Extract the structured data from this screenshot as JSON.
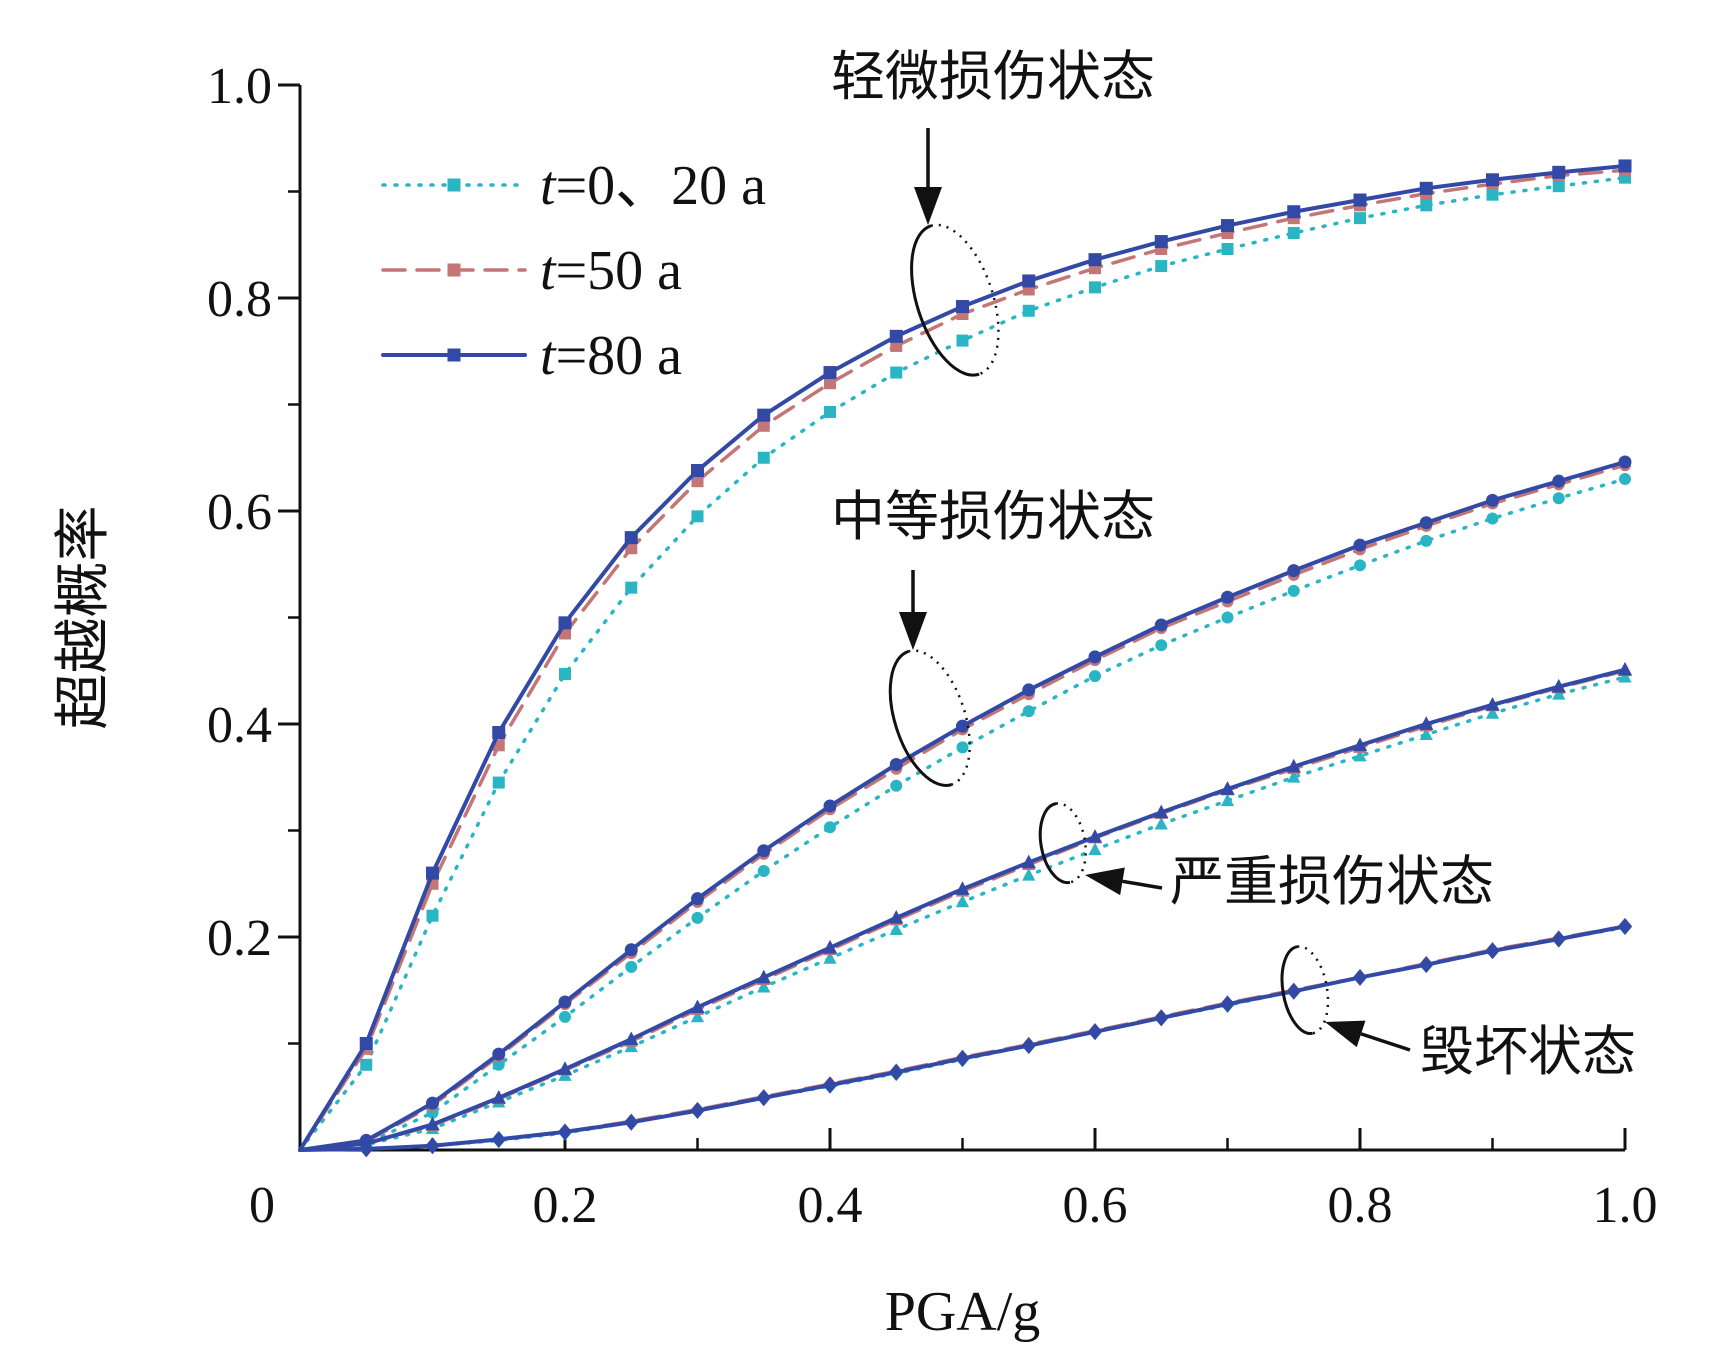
{
  "chart_data": {
    "type": "line",
    "xlabel": "PGA/g",
    "ylabel": "超越概率",
    "xlim": [
      0,
      1.0
    ],
    "ylim": [
      0,
      1.0
    ],
    "x_ticks": [
      {
        "value": 0,
        "label": "0"
      },
      {
        "value": 0.2,
        "label": "0.2"
      },
      {
        "value": 0.4,
        "label": "0.4"
      },
      {
        "value": 0.6,
        "label": "0.6"
      },
      {
        "value": 0.8,
        "label": "0.8"
      },
      {
        "value": 1.0,
        "label": "1.0"
      }
    ],
    "y_ticks": [
      {
        "value": 0.2,
        "label": "0.2"
      },
      {
        "value": 0.4,
        "label": "0.4"
      },
      {
        "value": 0.6,
        "label": "0.6"
      },
      {
        "value": 0.8,
        "label": "0.8"
      },
      {
        "value": 1.0,
        "label": "1.0"
      }
    ],
    "x_minor_step": 0.1,
    "y_minor_step": 0.1,
    "grid": false,
    "legend_position": "top-left",
    "legend": [
      {
        "series": "t0",
        "label_italic": "t",
        "label_rest": "=0、20 a",
        "color": "#29b5c4",
        "dash": "dotted",
        "marker": "square"
      },
      {
        "series": "t50",
        "label_italic": "t",
        "label_rest": "=50 a",
        "color": "#c47575",
        "dash": "dashed",
        "marker": "square"
      },
      {
        "series": "t80",
        "label_italic": "t",
        "label_rest": "=80 a",
        "color": "#3349a6",
        "dash": "solid",
        "marker": "square"
      }
    ],
    "series_styles": {
      "t0": {
        "color": "#29b5c4",
        "dash": "dotted"
      },
      "t50": {
        "color": "#c47575",
        "dash": "dashed"
      },
      "t80": {
        "color": "#3349a6",
        "dash": "solid"
      }
    },
    "x": [
      0,
      0.05,
      0.1,
      0.15,
      0.2,
      0.25,
      0.3,
      0.35,
      0.4,
      0.45,
      0.5,
      0.55,
      0.6,
      0.65,
      0.7,
      0.75,
      0.8,
      0.85,
      0.9,
      0.95,
      1.0
    ],
    "groups": [
      {
        "name": "轻微损伤状态",
        "marker": "square",
        "series": {
          "t0": [
            0,
            0.08,
            0.22,
            0.345,
            0.447,
            0.528,
            0.595,
            0.65,
            0.693,
            0.73,
            0.76,
            0.788,
            0.81,
            0.83,
            0.846,
            0.861,
            0.875,
            0.887,
            0.897,
            0.905,
            0.913
          ],
          "t50": [
            0,
            0.095,
            0.25,
            0.38,
            0.485,
            0.565,
            0.628,
            0.68,
            0.72,
            0.755,
            0.785,
            0.808,
            0.828,
            0.846,
            0.861,
            0.875,
            0.887,
            0.898,
            0.907,
            0.915,
            0.92
          ],
          "t80": [
            0,
            0.1,
            0.26,
            0.392,
            0.495,
            0.575,
            0.638,
            0.69,
            0.73,
            0.764,
            0.792,
            0.816,
            0.836,
            0.853,
            0.868,
            0.881,
            0.892,
            0.903,
            0.911,
            0.918,
            0.924
          ]
        }
      },
      {
        "name": "中等损伤状态",
        "marker": "circle",
        "series": {
          "t0": [
            0,
            0.006,
            0.035,
            0.08,
            0.125,
            0.172,
            0.218,
            0.262,
            0.303,
            0.342,
            0.378,
            0.412,
            0.445,
            0.474,
            0.5,
            0.525,
            0.549,
            0.572,
            0.593,
            0.612,
            0.63
          ],
          "t50": [
            0,
            0.008,
            0.042,
            0.088,
            0.137,
            0.185,
            0.233,
            0.278,
            0.32,
            0.358,
            0.395,
            0.428,
            0.46,
            0.49,
            0.515,
            0.54,
            0.564,
            0.586,
            0.607,
            0.625,
            0.643
          ],
          "t80": [
            0,
            0.009,
            0.044,
            0.09,
            0.139,
            0.188,
            0.236,
            0.281,
            0.323,
            0.362,
            0.398,
            0.432,
            0.463,
            0.493,
            0.519,
            0.544,
            0.568,
            0.589,
            0.61,
            0.628,
            0.646
          ]
        }
      },
      {
        "name": "严重损伤状态",
        "marker": "triangle",
        "series": {
          "t0": [
            0,
            0.005,
            0.02,
            0.045,
            0.07,
            0.097,
            0.125,
            0.153,
            0.18,
            0.207,
            0.233,
            0.258,
            0.282,
            0.306,
            0.328,
            0.35,
            0.37,
            0.39,
            0.41,
            0.428,
            0.444
          ],
          "t50": [
            0,
            0.006,
            0.023,
            0.048,
            0.075,
            0.102,
            0.132,
            0.16,
            0.188,
            0.216,
            0.243,
            0.268,
            0.293,
            0.316,
            0.338,
            0.358,
            0.378,
            0.398,
            0.417,
            0.434,
            0.45
          ],
          "t80": [
            0,
            0.006,
            0.024,
            0.049,
            0.076,
            0.104,
            0.134,
            0.162,
            0.19,
            0.218,
            0.245,
            0.27,
            0.294,
            0.317,
            0.339,
            0.36,
            0.38,
            0.4,
            0.418,
            0.435,
            0.451
          ]
        }
      },
      {
        "name": "毁坏状态",
        "marker": "diamond",
        "series": {
          "t0": [
            0,
            0.001,
            0.004,
            0.009,
            0.016,
            0.026,
            0.037,
            0.049,
            0.06,
            0.072,
            0.085,
            0.098,
            0.111,
            0.124,
            0.136,
            0.149,
            0.162,
            0.174,
            0.187,
            0.198,
            0.209
          ],
          "t50": [
            0,
            0.001,
            0.004,
            0.01,
            0.017,
            0.027,
            0.038,
            0.05,
            0.062,
            0.074,
            0.087,
            0.099,
            0.112,
            0.125,
            0.138,
            0.15,
            0.162,
            0.175,
            0.188,
            0.199,
            0.21
          ],
          "t80": [
            0,
            0.001,
            0.004,
            0.01,
            0.017,
            0.026,
            0.037,
            0.049,
            0.061,
            0.073,
            0.086,
            0.098,
            0.111,
            0.124,
            0.137,
            0.149,
            0.162,
            0.174,
            0.187,
            0.198,
            0.21
          ]
        }
      }
    ]
  }
}
